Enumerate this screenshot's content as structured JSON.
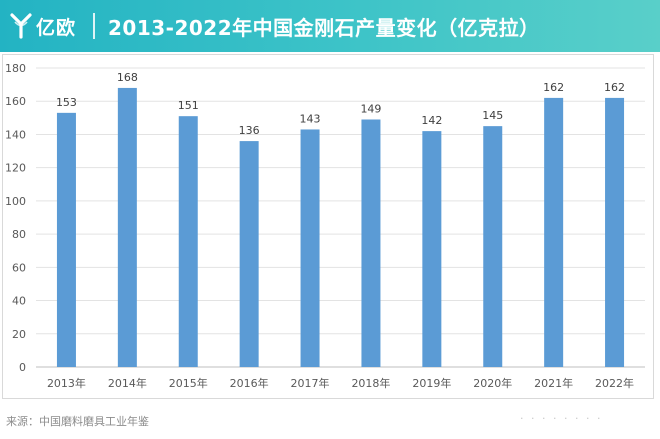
{
  "header": {
    "logo_text": "亿欧",
    "title": "2013-2022年中国金刚石产量变化（亿克拉）"
  },
  "source": "来源：中国磨料磨具工业年鉴",
  "colors": {
    "header_start": "#23b3c3",
    "header_end": "#59cfc9",
    "bar": "#5b9bd5",
    "grid": "#e3e3e3",
    "axis_text": "#595959"
  },
  "chart_data": {
    "type": "bar",
    "title": "2013-2022年中国金刚石产量变化（亿克拉）",
    "categories": [
      "2013年",
      "2014年",
      "2015年",
      "2016年",
      "2017年",
      "2018年",
      "2019年",
      "2020年",
      "2021年",
      "2022年"
    ],
    "values": [
      153,
      168,
      151,
      136,
      143,
      149,
      142,
      145,
      162,
      162
    ],
    "yticks": [
      0,
      20,
      40,
      60,
      80,
      100,
      120,
      140,
      160,
      180
    ],
    "ylim": [
      0,
      180
    ],
    "xlabel": "",
    "ylabel": "",
    "grid": true,
    "data_labels": true,
    "legend": "none"
  }
}
